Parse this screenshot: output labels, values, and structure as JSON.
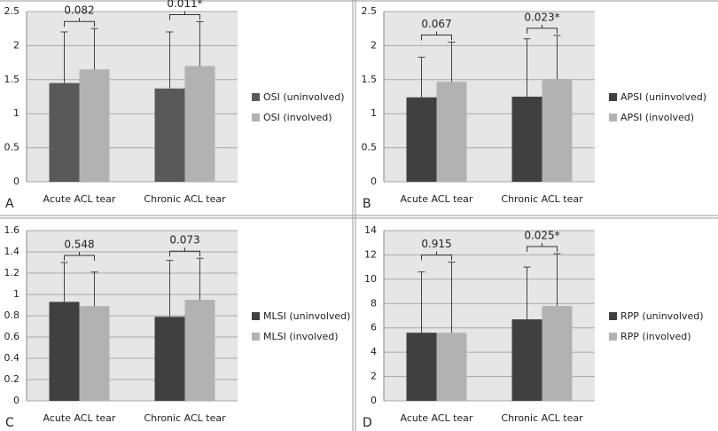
{
  "chart_data": [
    {
      "type": "bar",
      "panel_label": "A",
      "categories": [
        "Acute ACL tear",
        "Chronic ACL tear"
      ],
      "series": [
        {
          "name": "OSI (uninvolved)",
          "color": "#595959",
          "values": [
            1.45,
            1.37
          ],
          "errors": [
            0.75,
            0.83
          ]
        },
        {
          "name": "OSI (involved)",
          "color": "#b2b2b2",
          "values": [
            1.65,
            1.7
          ],
          "errors": [
            0.6,
            0.65
          ]
        }
      ],
      "annotations": [
        "0.082",
        "0.011*"
      ],
      "ylim": [
        0,
        2.5
      ],
      "yticks": [
        0,
        0.5,
        1,
        1.5,
        2,
        2.5
      ],
      "grid": true,
      "legend": "right"
    },
    {
      "type": "bar",
      "panel_label": "B",
      "categories": [
        "Acute ACL tear",
        "Chronic ACL tear"
      ],
      "series": [
        {
          "name": "APSI (uninvolved)",
          "color": "#404040",
          "values": [
            1.24,
            1.25
          ],
          "errors": [
            0.59,
            0.85
          ]
        },
        {
          "name": "APSI (involved)",
          "color": "#b2b2b2",
          "values": [
            1.47,
            1.51
          ],
          "errors": [
            0.58,
            0.64
          ]
        }
      ],
      "annotations": [
        "0.067",
        "0.023*"
      ],
      "ylim": [
        0,
        2.5
      ],
      "yticks": [
        0,
        0.5,
        1,
        1.5,
        2,
        2.5
      ],
      "grid": true,
      "legend": "right"
    },
    {
      "type": "bar",
      "panel_label": "C",
      "categories": [
        "Acute ACL tear",
        "Chronic ACL tear"
      ],
      "series": [
        {
          "name": "MLSI (uninvolved)",
          "color": "#404040",
          "values": [
            0.93,
            0.79
          ],
          "errors": [
            0.37,
            0.53
          ]
        },
        {
          "name": "MLSI (involved)",
          "color": "#b2b2b2",
          "values": [
            0.89,
            0.95
          ],
          "errors": [
            0.32,
            0.39
          ]
        }
      ],
      "annotations": [
        "0.548",
        "0.073"
      ],
      "ylim": [
        0,
        1.6
      ],
      "yticks": [
        0,
        0.2,
        0.4,
        0.6,
        0.8,
        1,
        1.2,
        1.4,
        1.6
      ],
      "grid": true,
      "legend": "right"
    },
    {
      "type": "bar",
      "panel_label": "D",
      "categories": [
        "Acute ACL tear",
        "Chronic ACL tear"
      ],
      "series": [
        {
          "name": "RPP (uninvolved)",
          "color": "#404040",
          "values": [
            5.6,
            6.7
          ],
          "errors": [
            5.0,
            4.3
          ]
        },
        {
          "name": "RPP (involved)",
          "color": "#b2b2b2",
          "values": [
            5.6,
            7.8
          ],
          "errors": [
            5.8,
            4.3
          ]
        }
      ],
      "annotations": [
        "0.915",
        "0.025*"
      ],
      "ylim": [
        0,
        14
      ],
      "yticks": [
        0,
        2,
        4,
        6,
        8,
        10,
        12,
        14
      ],
      "grid": true,
      "legend": "right"
    }
  ]
}
